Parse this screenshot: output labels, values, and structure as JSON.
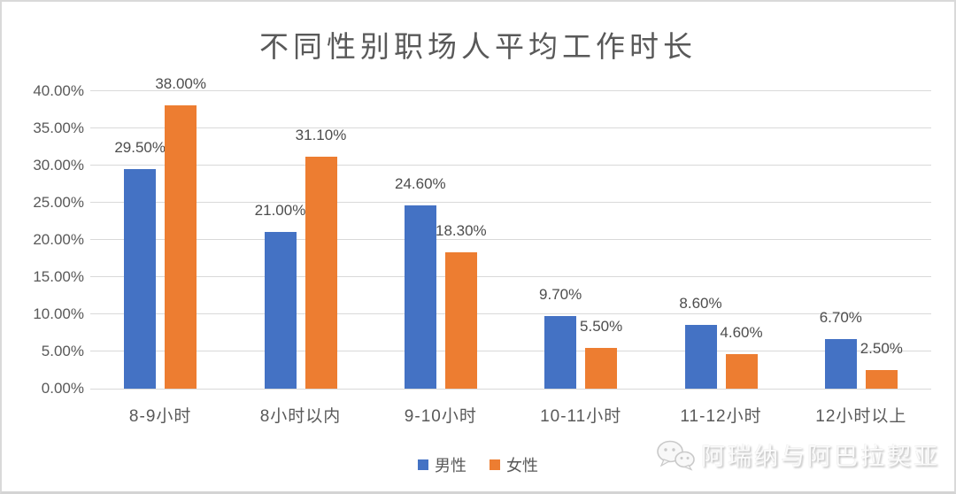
{
  "title": "不同性别职场人平均工作时长",
  "chart_data": {
    "type": "bar",
    "title": "不同性别职场人平均工作时长",
    "categories": [
      "8-9小时",
      "8小时以内",
      "9-10小时",
      "10-11小时",
      "11-12小时",
      "12小时以上"
    ],
    "series": [
      {
        "name": "男性",
        "color": "#4472C4",
        "values": [
          29.5,
          21.0,
          24.6,
          9.7,
          8.6,
          6.7
        ],
        "labels": [
          "29.50%",
          "21.00%",
          "24.60%",
          "9.70%",
          "8.60%",
          "6.70%"
        ]
      },
      {
        "name": "女性",
        "color": "#ED7D31",
        "values": [
          38.0,
          31.1,
          18.3,
          5.5,
          4.6,
          2.5
        ],
        "labels": [
          "38.00%",
          "31.10%",
          "18.30%",
          "5.50%",
          "4.60%",
          "2.50%"
        ]
      }
    ],
    "xlabel": "",
    "ylabel": "",
    "ylim": [
      0,
      40
    ],
    "ytick_step": 5,
    "ytick_labels": [
      "0.00%",
      "5.00%",
      "10.00%",
      "15.00%",
      "20.00%",
      "25.00%",
      "30.00%",
      "35.00%",
      "40.00%"
    ],
    "grid": true,
    "gridline_color": "#d9d9d9",
    "legend_position": "bottom"
  },
  "watermark": {
    "text": "阿瑞纳与阿巴拉契亚",
    "icon": "wechat-icon"
  }
}
